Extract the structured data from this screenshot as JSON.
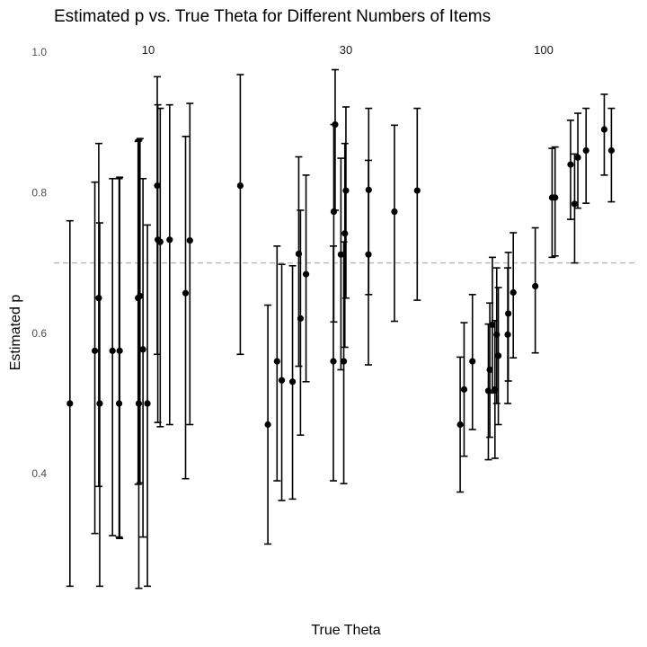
{
  "chart_data": {
    "type": "scatter",
    "title": "Estimated p vs. True Theta for Different Numbers of Items",
    "xlabel": "True Theta",
    "ylabel": "Estimated p",
    "ylim": [
      0.22,
      1.0
    ],
    "y_ticks": [
      "0.4",
      "0.6",
      "0.8",
      "1.0"
    ],
    "reference_line": {
      "y": 0.7,
      "style": "dashed",
      "color": "#b3b3b3"
    },
    "grid": false,
    "legend": "none",
    "colors": {
      "point": "#000000",
      "errorbar": "#000000",
      "reference": "#b3b3b3"
    },
    "facets": [
      {
        "label": "10",
        "points": [
          {
            "pos": 0.052,
            "y": 0.5,
            "lo": 0.24,
            "hi": 0.76
          },
          {
            "pos": 0.237,
            "y": 0.575,
            "lo": 0.315,
            "hi": 0.815
          },
          {
            "pos": 0.266,
            "y": 0.65,
            "lo": 0.382,
            "hi": 0.87
          },
          {
            "pos": 0.273,
            "y": 0.5,
            "lo": 0.24,
            "hi": 0.757
          },
          {
            "pos": 0.368,
            "y": 0.575,
            "lo": 0.312,
            "hi": 0.82
          },
          {
            "pos": 0.417,
            "y": 0.5,
            "lo": 0.31,
            "hi": 0.82
          },
          {
            "pos": 0.421,
            "y": 0.575,
            "lo": 0.308,
            "hi": 0.822
          },
          {
            "pos": 0.558,
            "y": 0.65,
            "lo": 0.385,
            "hi": 0.873
          },
          {
            "pos": 0.563,
            "y": 0.5,
            "lo": 0.237,
            "hi": 0.875
          },
          {
            "pos": 0.572,
            "y": 0.653,
            "lo": 0.387,
            "hi": 0.877
          },
          {
            "pos": 0.594,
            "y": 0.577,
            "lo": 0.31,
            "hi": 0.82
          },
          {
            "pos": 0.627,
            "y": 0.5,
            "lo": 0.24,
            "hi": 0.754
          },
          {
            "pos": 0.7,
            "y": 0.81,
            "lo": 0.57,
            "hi": 0.965
          },
          {
            "pos": 0.704,
            "y": 0.733,
            "lo": 0.473,
            "hi": 0.925
          },
          {
            "pos": 0.722,
            "y": 0.73,
            "lo": 0.467,
            "hi": 0.92
          },
          {
            "pos": 0.792,
            "y": 0.733,
            "lo": 0.47,
            "hi": 0.925
          },
          {
            "pos": 0.91,
            "y": 0.657,
            "lo": 0.393,
            "hi": 0.88
          },
          {
            "pos": 0.942,
            "y": 0.732,
            "lo": 0.47,
            "hi": 0.927
          },
          {
            "pos": 1.316,
            "y": 0.81,
            "lo": 0.57,
            "hi": 0.968
          }
        ]
      },
      {
        "label": "30",
        "points": [
          {
            "pos": 0.054,
            "y": 0.47,
            "lo": 0.3,
            "hi": 0.64
          },
          {
            "pos": 0.122,
            "y": 0.56,
            "lo": 0.39,
            "hi": 0.724
          },
          {
            "pos": 0.157,
            "y": 0.533,
            "lo": 0.362,
            "hi": 0.698
          },
          {
            "pos": 0.237,
            "y": 0.531,
            "lo": 0.364,
            "hi": 0.696
          },
          {
            "pos": 0.283,
            "y": 0.713,
            "lo": 0.553,
            "hi": 0.851
          },
          {
            "pos": 0.296,
            "y": 0.621,
            "lo": 0.455,
            "hi": 0.775
          },
          {
            "pos": 0.337,
            "y": 0.684,
            "lo": 0.531,
            "hi": 0.825
          },
          {
            "pos": 0.54,
            "y": 0.56,
            "lo": 0.39,
            "hi": 0.724
          },
          {
            "pos": 0.543,
            "y": 0.773,
            "lo": 0.616,
            "hi": 0.897
          },
          {
            "pos": 0.553,
            "y": 0.897,
            "lo": 0.775,
            "hi": 0.975
          },
          {
            "pos": 0.596,
            "y": 0.712,
            "lo": 0.548,
            "hi": 0.849
          },
          {
            "pos": 0.617,
            "y": 0.56,
            "lo": 0.386,
            "hi": 0.73
          },
          {
            "pos": 0.625,
            "y": 0.742,
            "lo": 0.58,
            "hi": 0.87
          },
          {
            "pos": 0.633,
            "y": 0.803,
            "lo": 0.65,
            "hi": 0.922
          },
          {
            "pos": 0.8,
            "y": 0.712,
            "lo": 0.555,
            "hi": 0.846
          },
          {
            "pos": 0.802,
            "y": 0.804,
            "lo": 0.655,
            "hi": 0.92
          },
          {
            "pos": 0.993,
            "y": 0.773,
            "lo": 0.617,
            "hi": 0.896
          },
          {
            "pos": 1.162,
            "y": 0.803,
            "lo": 0.647,
            "hi": 0.92
          }
        ]
      },
      {
        "label": "100",
        "points": [
          {
            "pos": 0.014,
            "y": 0.47,
            "lo": 0.374,
            "hi": 0.566
          },
          {
            "pos": 0.043,
            "y": 0.52,
            "lo": 0.425,
            "hi": 0.615
          },
          {
            "pos": 0.105,
            "y": 0.56,
            "lo": 0.463,
            "hi": 0.655
          },
          {
            "pos": 0.223,
            "y": 0.518,
            "lo": 0.42,
            "hi": 0.613
          },
          {
            "pos": 0.234,
            "y": 0.548,
            "lo": 0.452,
            "hi": 0.643
          },
          {
            "pos": 0.253,
            "y": 0.612,
            "lo": 0.515,
            "hi": 0.708
          },
          {
            "pos": 0.272,
            "y": 0.52,
            "lo": 0.422,
            "hi": 0.618
          },
          {
            "pos": 0.285,
            "y": 0.598,
            "lo": 0.5,
            "hi": 0.693
          },
          {
            "pos": 0.297,
            "y": 0.568,
            "lo": 0.47,
            "hi": 0.665
          },
          {
            "pos": 0.367,
            "y": 0.598,
            "lo": 0.5,
            "hi": 0.693
          },
          {
            "pos": 0.371,
            "y": 0.628,
            "lo": 0.532,
            "hi": 0.715
          },
          {
            "pos": 0.408,
            "y": 0.658,
            "lo": 0.565,
            "hi": 0.743
          },
          {
            "pos": 0.571,
            "y": 0.667,
            "lo": 0.572,
            "hi": 0.75
          },
          {
            "pos": 0.696,
            "y": 0.793,
            "lo": 0.708,
            "hi": 0.863
          },
          {
            "pos": 0.718,
            "y": 0.793,
            "lo": 0.71,
            "hi": 0.865
          },
          {
            "pos": 0.833,
            "y": 0.84,
            "lo": 0.762,
            "hi": 0.903
          },
          {
            "pos": 0.863,
            "y": 0.784,
            "lo": 0.7,
            "hi": 0.855
          },
          {
            "pos": 0.887,
            "y": 0.85,
            "lo": 0.778,
            "hi": 0.913
          },
          {
            "pos": 0.948,
            "y": 0.86,
            "lo": 0.785,
            "hi": 0.92
          },
          {
            "pos": 1.083,
            "y": 0.89,
            "lo": 0.825,
            "hi": 0.94
          },
          {
            "pos": 1.136,
            "y": 0.86,
            "lo": 0.787,
            "hi": 0.92
          }
        ]
      }
    ]
  }
}
